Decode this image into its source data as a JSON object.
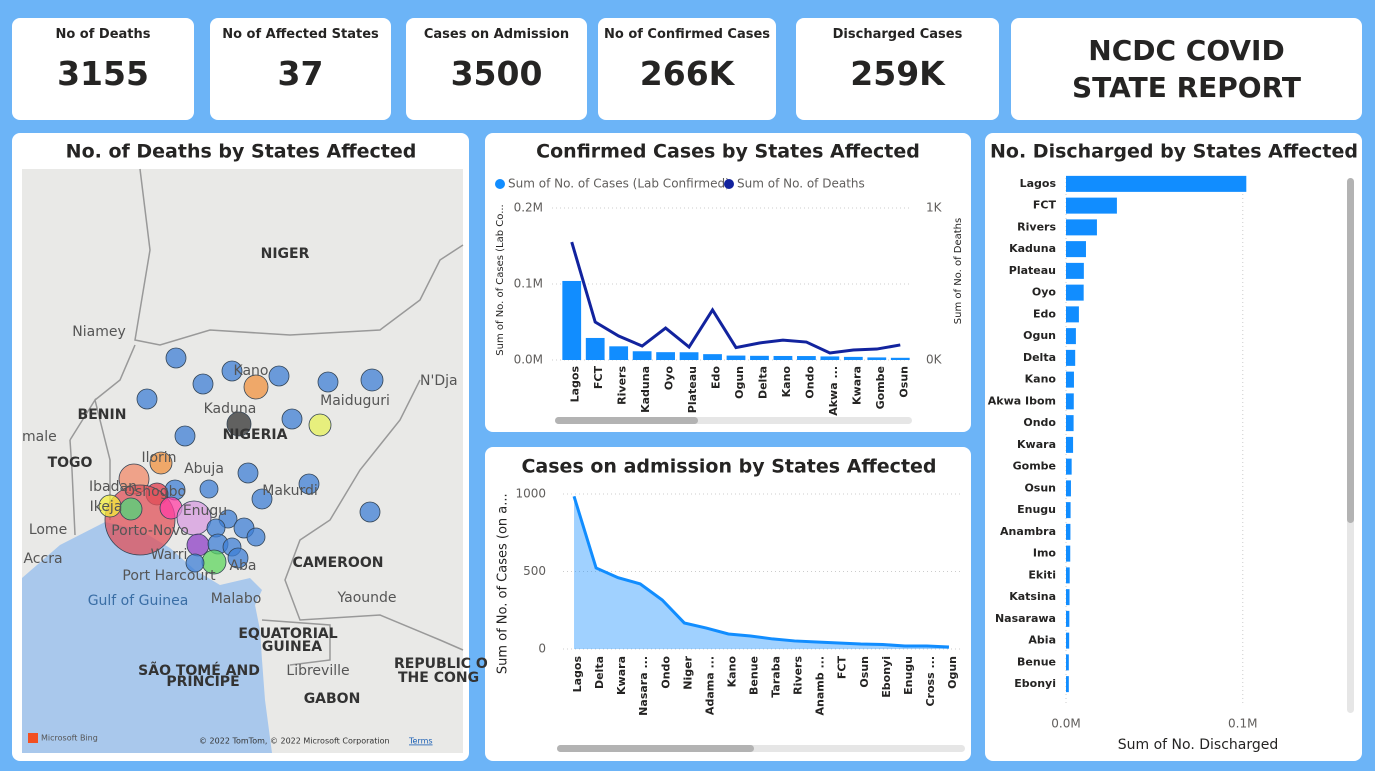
{
  "report_title": "NCDC COVID STATE REPORT",
  "cards": [
    {
      "label": "No of Deaths",
      "value": 3155
    },
    {
      "label": "No of Affected States",
      "value": 37
    },
    {
      "label": "Cases on Admission",
      "value": 3500
    },
    {
      "label": "No of Confirmed Cases",
      "value": "266K"
    },
    {
      "label": "Discharged Cases",
      "value": "259K"
    }
  ],
  "map": {
    "title": "No. of Deaths by States Affected",
    "labels": [
      "NIGER",
      "Niamey",
      "BENIN",
      "TOGO",
      "male",
      "Kano",
      "Kaduna",
      "NIGERIA",
      "Maiduguri",
      "N'Dja",
      "Ilorin",
      "Abuja",
      "Ibadan",
      "Oshogbo",
      "Ikeja",
      "Enugu",
      "Makurdi",
      "Lome",
      "Accra",
      "Porto-Novo",
      "Warri",
      "Port Harcourt",
      "Aba",
      "CAMEROON",
      "Gulf of Guinea",
      "Malabo",
      "Yaounde",
      "EQUATORIAL",
      "GUINEA",
      "SÃO TOMÉ AND",
      "PRÍNCIPE",
      "Libreville",
      "REPUBLIC O",
      "THE CONG",
      "GABON",
      "Microsoft Bing",
      "© 2022 TomTom, © 2022 Microsoft Corporation",
      "Terms"
    ]
  },
  "chart_data": [
    {
      "type": "combo",
      "title": "Confirmed Cases by States Affected",
      "categories": [
        "Lagos",
        "FCT",
        "Rivers",
        "Kaduna",
        "Oyo",
        "Plateau",
        "Edo",
        "Ogun",
        "Delta",
        "Kano",
        "Ondo",
        "Akwa ...",
        "Kwara",
        "Gombe",
        "Osun"
      ],
      "series": [
        {
          "name": "Sum of No. of Cases (Lab Confirmed)",
          "color": "#118dff",
          "values": [
            104000,
            29000,
            18000,
            11500,
            10300,
            10200,
            7700,
            5800,
            5500,
            5300,
            5200,
            4700,
            4100,
            3400,
            2900
          ]
        },
        {
          "name": "Sum of No. of Deaths",
          "color": "#12239e",
          "axis": "y2",
          "values": [
            776,
            250,
            158,
            92,
            210,
            85,
            329,
            82,
            112,
            131,
            118,
            46,
            66,
            72,
            99
          ]
        }
      ],
      "ylabel": "Sum of No. of Cases (Lab Co...",
      "y2label": "Sum of No. of Deaths",
      "ylim": [
        0,
        200000
      ],
      "yticks": [
        {
          "value": 0,
          "label": "0.0M"
        },
        {
          "value": 100000,
          "label": "0.1M"
        },
        {
          "value": 200000,
          "label": "0.2M"
        }
      ],
      "y2lim": [
        0,
        1000
      ],
      "y2ticks": [
        {
          "value": 0,
          "label": "0K"
        },
        {
          "value": 1000,
          "label": "1K"
        }
      ],
      "grid": true
    },
    {
      "type": "area",
      "title": "Cases on admission by States Affected",
      "categories": [
        "Lagos",
        "Delta",
        "Kwara",
        "Nasara ...",
        "Ondo",
        "Niger",
        "Adama ...",
        "Kano",
        "Benue",
        "Taraba",
        "Rivers",
        "Anamb ...",
        "FCT",
        "Osun",
        "Ebonyi",
        "Enugu",
        "Cross ...",
        "Ogun"
      ],
      "values": [
        985,
        523,
        460,
        420,
        316,
        168,
        135,
        97,
        84,
        65,
        52,
        45,
        39,
        32,
        29,
        19,
        19,
        13
      ],
      "color": "#118dff",
      "ylabel": "Sum of No. of Cases (on a...",
      "ylim": [
        0,
        1100
      ],
      "yticks": [
        0,
        500,
        1000
      ],
      "grid": true
    },
    {
      "type": "hbar",
      "title": "No. Discharged by States Affected",
      "categories": [
        "Lagos",
        "FCT",
        "Rivers",
        "Kaduna",
        "Plateau",
        "Oyo",
        "Edo",
        "Ogun",
        "Delta",
        "Kano",
        "Akwa Ibom",
        "Ondo",
        "Kwara",
        "Gombe",
        "Osun",
        "Enugu",
        "Anambra",
        "Imo",
        "Ekiti",
        "Katsina",
        "Nasarawa",
        "Abia",
        "Benue",
        "Ebonyi"
      ],
      "values": [
        102000,
        28800,
        17500,
        11300,
        10100,
        10000,
        7300,
        5600,
        5200,
        4500,
        4400,
        4300,
        4000,
        3200,
        2800,
        2600,
        2500,
        2400,
        2100,
        2000,
        1900,
        1800,
        1600,
        1600
      ],
      "color": "#118dff",
      "xlabel": "Sum of No. Discharged",
      "xlim": [
        0,
        155000
      ],
      "xticks": [
        {
          "value": 0,
          "label": "0.0M"
        },
        {
          "value": 100000,
          "label": "0.1M"
        }
      ],
      "grid": true
    }
  ]
}
